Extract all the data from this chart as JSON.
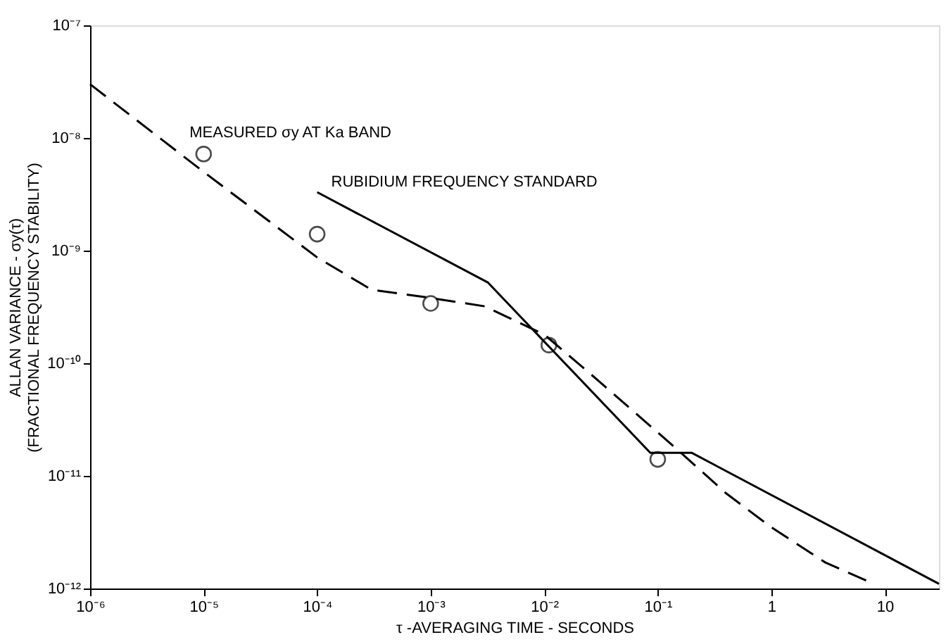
{
  "chart_data": {
    "type": "line",
    "xlabel": "τ -AVERAGING TIME - SECONDS",
    "ylabel": "ALLAN VARIANCE - σy(τ)\n(FRACTIONAL FREQUENCY STABILITY)",
    "log": "xy",
    "grid": false,
    "xlim": [
      1e-06,
      30
    ],
    "ylim": [
      1e-12,
      1e-07
    ],
    "xticks": [
      {
        "value": 1e-06,
        "label": "10⁻⁶"
      },
      {
        "value": 1e-05,
        "label": "10⁻⁵"
      },
      {
        "value": 0.0001,
        "label": "10⁻⁴"
      },
      {
        "value": 0.001,
        "label": "10⁻³"
      },
      {
        "value": 0.01,
        "label": "10⁻²"
      },
      {
        "value": 0.1,
        "label": "10⁻¹"
      },
      1,
      10
    ],
    "yticks": [
      {
        "value": 1e-12,
        "label": "10⁻¹²"
      },
      {
        "value": 1e-11,
        "label": "10⁻¹¹"
      },
      {
        "value": 1e-10,
        "label": "10⁻¹⁰"
      },
      {
        "value": 1e-09,
        "label": "10⁻⁹"
      },
      {
        "value": 1e-08,
        "label": "10⁻⁸"
      },
      {
        "value": 1e-07,
        "label": "10⁻⁷"
      }
    ],
    "series": [
      {
        "line_style": "dashed",
        "color": "#000000",
        "x": [
          1e-06,
          1e-05,
          0.0001,
          0.0003,
          0.001,
          0.003,
          0.01,
          0.03,
          0.15,
          0.4,
          1,
          3,
          8
        ],
        "values": [
          3e-08,
          5e-09,
          8.7e-10,
          4.5e-10,
          3.8e-10,
          3.2e-10,
          1.8e-10,
          7e-11,
          1.7e-11,
          7e-12,
          3.5e-12,
          1.7e-12,
          1.1e-12
        ]
      },
      {
        "type": "line",
        "name": "RUBIDIUM FREQUENCY STANDARD",
        "line_style": "solid",
        "color": "#000000",
        "x": [
          0.0001,
          0.0032,
          0.086,
          0.2,
          30
        ],
        "values": [
          3.3e-09,
          5.2e-10,
          1.6e-11,
          1.6e-11,
          1.1e-12
        ]
      },
      {
        "type": "scatter",
        "name": "MEASURED σy AT Ka BAND",
        "marker": "circle",
        "color": "#000000",
        "x": [
          1e-05,
          0.0001,
          0.001,
          0.011,
          0.1
        ],
        "values": [
          7.2e-09,
          1.4e-09,
          3.4e-10,
          1.45e-10,
          1.4e-11
        ]
      }
    ]
  }
}
